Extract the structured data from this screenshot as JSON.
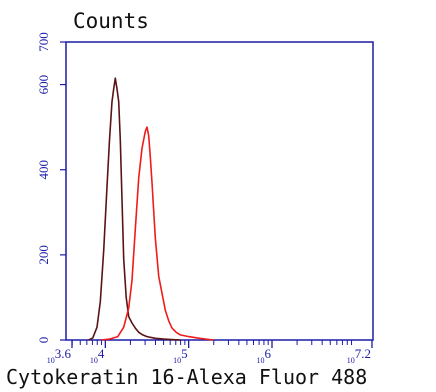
{
  "chart_data": {
    "type": "line",
    "title": "Counts",
    "xlabel": "Cytokeratin 16-Alexa Fluor 488",
    "ylabel": "",
    "x_scale": "log10",
    "xlim": [
      3.6,
      7.2
    ],
    "ylim": [
      0,
      700
    ],
    "x_ticks": [
      {
        "base": "10",
        "exp": "3.6",
        "value": 3.6
      },
      {
        "base": "10",
        "exp": "4",
        "value": 4
      },
      {
        "base": "10",
        "exp": "5",
        "value": 5
      },
      {
        "base": "10",
        "exp": "6",
        "value": 6
      },
      {
        "base": "10",
        "exp": "7.2",
        "value": 7.2
      }
    ],
    "y_ticks": [
      "0",
      "200",
      "400",
      "600",
      "700"
    ],
    "grid": false,
    "colors": {
      "axis": "#1c1ca8",
      "series_1": "#5a1414",
      "series_2": "#ee1c1c"
    },
    "series": [
      {
        "color": "#5a1414",
        "x": [
          3.8,
          3.85,
          3.9,
          3.94,
          3.98,
          4.02,
          4.05,
          4.08,
          4.1,
          4.12,
          4.14,
          4.16,
          4.18,
          4.2,
          4.22,
          4.25,
          4.28,
          4.32,
          4.36,
          4.4,
          4.45,
          4.5,
          4.6,
          4.7,
          4.8,
          4.9
        ],
        "y": [
          0,
          5,
          30,
          90,
          210,
          360,
          470,
          560,
          590,
          615,
          590,
          560,
          470,
          330,
          190,
          100,
          55,
          40,
          28,
          18,
          12,
          8,
          4,
          2,
          1,
          0
        ]
      },
      {
        "color": "#ee1c1c",
        "x": [
          3.95,
          4.05,
          4.15,
          4.22,
          4.28,
          4.32,
          4.36,
          4.4,
          4.44,
          4.48,
          4.5,
          4.52,
          4.54,
          4.56,
          4.6,
          4.64,
          4.68,
          4.72,
          4.76,
          4.8,
          4.85,
          4.9,
          5.0,
          5.1,
          5.2,
          5.3
        ],
        "y": [
          0,
          2,
          8,
          30,
          75,
          140,
          260,
          380,
          450,
          490,
          500,
          480,
          430,
          370,
          240,
          150,
          110,
          70,
          45,
          28,
          18,
          12,
          8,
          5,
          2,
          0
        ]
      }
    ]
  }
}
